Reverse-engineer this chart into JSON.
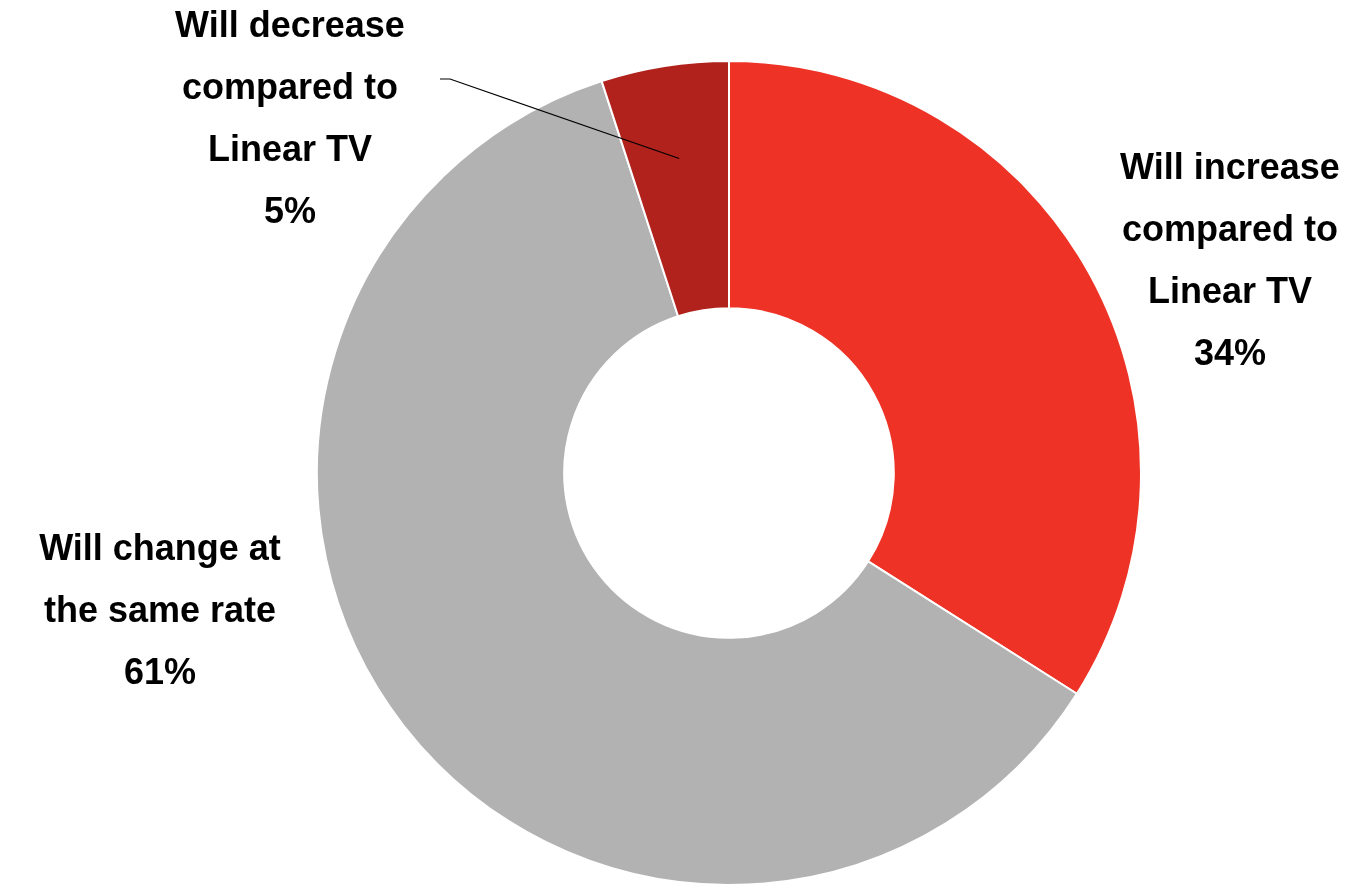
{
  "chart_data": {
    "type": "donut",
    "categories": [
      "Will increase compared to Linear TV",
      "Will change at the same rate",
      "Will decrease compared to Linear TV"
    ],
    "values": [
      34,
      61,
      5
    ],
    "colors": [
      "#ee3326",
      "#b2b2b2",
      "#b0221b"
    ],
    "value_labels": [
      "34%",
      "61%",
      "5%"
    ],
    "legend": false
  }
}
